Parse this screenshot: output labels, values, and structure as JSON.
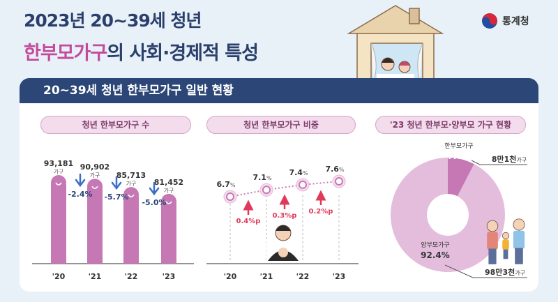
{
  "header": {
    "title_line1": "2023년 20~39세 청년",
    "title_line2_highlight": "한부모가구",
    "title_line2_rest": "의 사회·경제적 특성",
    "org": "통계청",
    "section_title": "20~39세 청년 한부모가구 일반 현황"
  },
  "colors": {
    "navy": "#2b4677",
    "bar": "#c678b5",
    "accent_red": "#e03a5a",
    "arrow_blue": "#3a6fc4",
    "donut_light": "#e3bddb",
    "donut_dark": "#c678b5"
  },
  "chart_data": [
    {
      "type": "bar",
      "title": "청년 한부모가구 수",
      "categories": [
        "'20",
        "'21",
        "'22",
        "'23"
      ],
      "values": [
        93181,
        90902,
        85713,
        81452
      ],
      "value_labels": [
        "93,181",
        "90,902",
        "85,713",
        "81,452"
      ],
      "unit": "가구",
      "changes": [
        "-2.4%",
        "-5.7%",
        "-5.0%"
      ]
    },
    {
      "type": "line",
      "title": "청년 한부모가구 비중",
      "categories": [
        "'20",
        "'21",
        "'22",
        "'23"
      ],
      "values": [
        6.7,
        7.1,
        7.4,
        7.6
      ],
      "value_labels": [
        "6.7",
        "7.1",
        "7.4",
        "7.6"
      ],
      "unit": "%",
      "changes": [
        "0.4%p",
        "0.3%p",
        "0.2%p"
      ]
    },
    {
      "type": "pie",
      "title": "'23 청년 한부모·양부모 가구 현황",
      "slices": [
        {
          "label": "한부모가구",
          "percent": "7.6%",
          "value": 7.6,
          "count": "8만1천",
          "unit": "가구"
        },
        {
          "label": "양부모가구",
          "percent": "92.4%",
          "value": 92.4,
          "count": "98만3천",
          "unit": "가구"
        }
      ]
    }
  ]
}
